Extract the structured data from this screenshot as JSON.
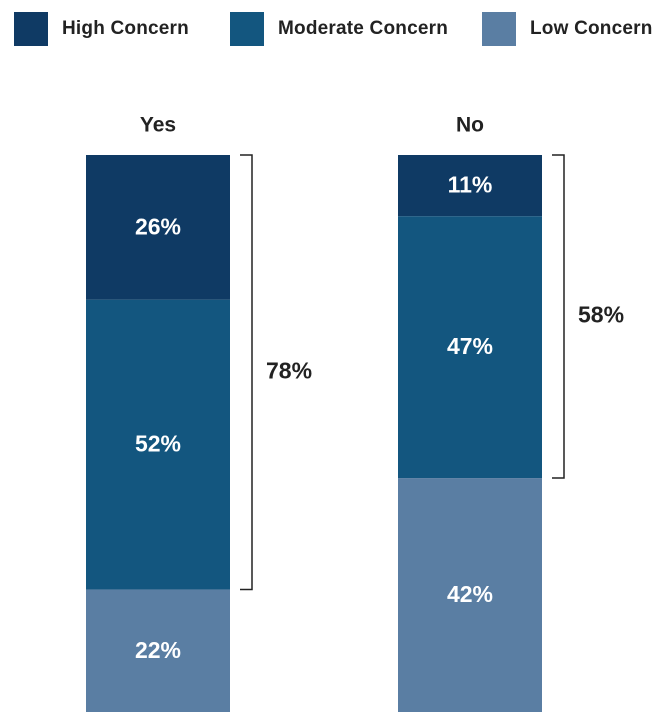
{
  "legend": {
    "items": [
      {
        "label": "High Concern",
        "color": "#0f3a64"
      },
      {
        "label": "Moderate Concern",
        "color": "#13567f"
      },
      {
        "label": "Low Concern",
        "color": "#5a7ea3"
      }
    ]
  },
  "chart_data": {
    "type": "bar",
    "stacked": true,
    "orientation": "vertical-stacked-100",
    "categories": [
      "Yes",
      "No"
    ],
    "series": [
      {
        "name": "High Concern",
        "color": "#0f3a64",
        "values": [
          26,
          11
        ]
      },
      {
        "name": "Moderate Concern",
        "color": "#13567f",
        "values": [
          52,
          47
        ]
      },
      {
        "name": "Low Concern",
        "color": "#5a7ea3",
        "values": [
          22,
          42
        ]
      }
    ],
    "value_suffix": "%",
    "brackets": [
      {
        "category": "Yes",
        "label": "78%",
        "covers": [
          "High Concern",
          "Moderate Concern"
        ]
      },
      {
        "category": "No",
        "label": "58%",
        "covers": [
          "High Concern",
          "Moderate Concern"
        ]
      }
    ],
    "legend_position": "top",
    "grid": false
  }
}
